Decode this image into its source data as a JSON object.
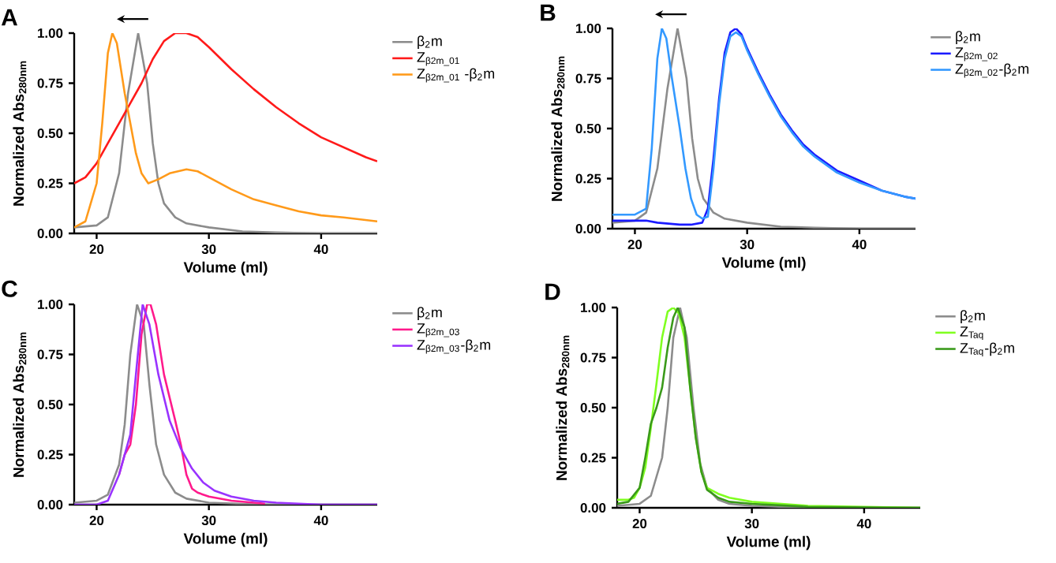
{
  "chart_data": [
    {
      "type": "line",
      "title": "A",
      "xlabel": "Volume (ml)",
      "ylabel": "Normalized Abs$_{280nm}$",
      "legend": "right",
      "marker": "none",
      "line_style": "solid",
      "xlim": [
        18,
        45
      ],
      "xticks": [
        20,
        30,
        40
      ],
      "ylim": [
        0,
        1
      ],
      "yticks": [
        {
          "value": 0,
          "label": "0.00"
        },
        {
          "value": 0.25,
          "label": "0.25"
        },
        {
          "value": 0.5,
          "label": "0.50"
        },
        {
          "value": 0.75,
          "label": "0.75"
        },
        {
          "value": 1,
          "label": "1.00"
        }
      ],
      "series": [
        {
          "name": "β$_{2}$m",
          "color": "#8c8c8c",
          "x": [
            18,
            20,
            21,
            22,
            22.8,
            23.7,
            24.5,
            25,
            25.5,
            26,
            27,
            28,
            30,
            33,
            36,
            40,
            45
          ],
          "values": [
            0.03,
            0.04,
            0.08,
            0.3,
            0.7,
            1.0,
            0.75,
            0.45,
            0.25,
            0.15,
            0.08,
            0.05,
            0.03,
            0.01,
            0.005,
            0,
            0
          ]
        },
        {
          "name": "Z$_{β2m_01}$",
          "color": "#ff1a1a",
          "x": [
            18,
            19,
            20,
            21,
            22,
            23,
            24,
            25,
            26,
            27,
            28,
            29,
            30,
            32,
            34,
            36,
            38,
            40,
            42,
            44,
            45
          ],
          "values": [
            0.25,
            0.28,
            0.35,
            0.45,
            0.55,
            0.65,
            0.75,
            0.87,
            0.96,
            1.0,
            1.0,
            0.98,
            0.93,
            0.82,
            0.72,
            0.63,
            0.55,
            0.48,
            0.43,
            0.38,
            0.36
          ]
        },
        {
          "name": "Z$_{β2m_01}$ -β$_{2}$m",
          "color": "#ff9a1a",
          "x": [
            18,
            19,
            20,
            20.5,
            21,
            21.4,
            21.8,
            22.5,
            23,
            23.5,
            24,
            24.6,
            25.5,
            26.5,
            28,
            29,
            30,
            32,
            34,
            36,
            38,
            40,
            42,
            45
          ],
          "values": [
            0.03,
            0.06,
            0.25,
            0.55,
            0.9,
            1.0,
            0.95,
            0.7,
            0.55,
            0.4,
            0.3,
            0.25,
            0.27,
            0.3,
            0.32,
            0.31,
            0.28,
            0.22,
            0.17,
            0.14,
            0.11,
            0.09,
            0.08,
            0.06
          ]
        }
      ]
    },
    {
      "type": "line",
      "title": "B",
      "xlabel": "Volume (ml)",
      "ylabel": "Normalized Abs$_{280nm}$",
      "legend": "right",
      "marker": "none",
      "line_style": "solid",
      "xlim": [
        18,
        45
      ],
      "xticks": [
        20,
        30,
        40
      ],
      "ylim": [
        0,
        1
      ],
      "yticks": [
        {
          "value": 0,
          "label": "0.00"
        },
        {
          "value": 0.25,
          "label": "0.25"
        },
        {
          "value": 0.5,
          "label": "0.50"
        },
        {
          "value": 0.75,
          "label": "0.75"
        },
        {
          "value": 1,
          "label": "1.00"
        }
      ],
      "series": [
        {
          "name": "β$_{2}$m",
          "color": "#8c8c8c",
          "x": [
            18,
            20,
            21,
            22,
            22.9,
            23.8,
            24.6,
            25.1,
            25.6,
            26.1,
            27,
            28,
            30,
            33,
            36,
            40,
            45
          ],
          "values": [
            0.03,
            0.04,
            0.08,
            0.3,
            0.7,
            1.0,
            0.75,
            0.45,
            0.25,
            0.15,
            0.08,
            0.05,
            0.03,
            0.01,
            0.005,
            0,
            0
          ]
        },
        {
          "name": "Z$_{β2m_02}$",
          "color": "#1a1aff",
          "x": [
            18,
            20,
            21,
            22,
            24,
            25,
            26,
            26.5,
            27,
            27.5,
            28,
            28.5,
            29,
            29.5,
            30,
            31,
            32,
            33,
            34,
            35,
            36,
            38,
            40,
            42,
            44,
            45
          ],
          "values": [
            0.04,
            0.04,
            0.04,
            0.03,
            0.02,
            0.02,
            0.03,
            0.1,
            0.35,
            0.65,
            0.88,
            0.98,
            1.0,
            0.97,
            0.9,
            0.78,
            0.67,
            0.57,
            0.49,
            0.42,
            0.37,
            0.29,
            0.24,
            0.19,
            0.16,
            0.15
          ]
        },
        {
          "name": "Z$_{β2m_02}$-β$_{2}$m",
          "color": "#3399ff",
          "x": [
            18,
            20,
            21,
            21.5,
            22,
            22.4,
            22.8,
            23.3,
            24,
            24.5,
            25,
            25.5,
            26,
            26.5,
            27,
            27.5,
            28,
            28.5,
            29,
            29.5,
            30,
            31,
            32,
            33,
            34,
            35,
            36,
            38,
            40,
            42,
            44,
            45
          ],
          "values": [
            0.07,
            0.07,
            0.1,
            0.4,
            0.85,
            1.0,
            0.95,
            0.75,
            0.5,
            0.3,
            0.15,
            0.07,
            0.05,
            0.06,
            0.3,
            0.62,
            0.85,
            0.96,
            0.98,
            0.96,
            0.89,
            0.77,
            0.66,
            0.56,
            0.48,
            0.41,
            0.36,
            0.28,
            0.23,
            0.19,
            0.16,
            0.15
          ]
        }
      ]
    },
    {
      "type": "line",
      "title": "C",
      "xlabel": "Volume (ml)",
      "ylabel": "Normalized Abs$_{280nm}$",
      "legend": "right",
      "marker": "none",
      "line_style": "solid",
      "xlim": [
        18,
        45
      ],
      "xticks": [
        20,
        30,
        40
      ],
      "ylim": [
        0,
        1
      ],
      "yticks": [
        {
          "value": 0,
          "label": "0.00"
        },
        {
          "value": 0.25,
          "label": "0.25"
        },
        {
          "value": 0.5,
          "label": "0.50"
        },
        {
          "value": 0.75,
          "label": "0.75"
        },
        {
          "value": 1,
          "label": "1.00"
        }
      ],
      "series": [
        {
          "name": "β$_{2}$m",
          "color": "#8c8c8c",
          "x": [
            18,
            20,
            21,
            22,
            22.5,
            23,
            23.6,
            24.2,
            24.7,
            25.3,
            26,
            27,
            28,
            30,
            35,
            45
          ],
          "values": [
            0.01,
            0.02,
            0.05,
            0.2,
            0.4,
            0.75,
            1.0,
            0.9,
            0.6,
            0.3,
            0.15,
            0.06,
            0.03,
            0.01,
            0,
            0
          ]
        },
        {
          "name": "Z$_{β2m_03}$",
          "color": "#ff1a8c",
          "x": [
            22,
            22.5,
            23,
            23.5,
            24,
            24.5,
            24.8,
            25.3,
            26,
            27,
            27.5,
            28,
            28.5,
            29,
            30,
            32,
            35
          ],
          "values": [
            0.15,
            0.25,
            0.3,
            0.5,
            0.85,
            1.0,
            1.0,
            0.9,
            0.65,
            0.42,
            0.3,
            0.15,
            0.08,
            0.06,
            0.04,
            0.02,
            0.005
          ]
        },
        {
          "name": "Z$_{β2m_03}$-β$_{2}$m",
          "color": "#9933ff",
          "x": [
            18,
            20,
            21,
            22,
            22.5,
            23,
            23.5,
            24.1,
            24.7,
            25.5,
            26.5,
            27.5,
            28.5,
            29.5,
            30.5,
            32,
            34,
            36,
            40,
            45
          ],
          "values": [
            0,
            0,
            0.02,
            0.15,
            0.25,
            0.35,
            0.65,
            1.0,
            0.9,
            0.65,
            0.42,
            0.28,
            0.18,
            0.11,
            0.07,
            0.04,
            0.02,
            0.01,
            0,
            0
          ]
        }
      ]
    },
    {
      "type": "line",
      "title": "D",
      "xlabel": "Volume (ml)",
      "ylabel": "Normalized Abs$_{280nm}$",
      "legend": "right",
      "marker": "none",
      "line_style": "solid",
      "xlim": [
        18,
        45
      ],
      "xticks": [
        20,
        30,
        40
      ],
      "ylim": [
        0,
        1
      ],
      "yticks": [
        {
          "value": 0,
          "label": "0.00"
        },
        {
          "value": 0.25,
          "label": "0.25"
        },
        {
          "value": 0.5,
          "label": "0.50"
        },
        {
          "value": 0.75,
          "label": "0.75"
        },
        {
          "value": 1,
          "label": "1.00"
        }
      ],
      "series": [
        {
          "name": "β$_{2}$m",
          "color": "#8c8c8c",
          "x": [
            18,
            20,
            21,
            22,
            22.5,
            23,
            23.6,
            24.2,
            24.8,
            25.4,
            26,
            27,
            28,
            30,
            35,
            45
          ],
          "values": [
            0.01,
            0.02,
            0.06,
            0.25,
            0.5,
            0.85,
            1.0,
            0.85,
            0.5,
            0.22,
            0.1,
            0.04,
            0.02,
            0.01,
            0,
            0
          ]
        },
        {
          "name": "Z$_{Taq}$",
          "color": "#80ff20",
          "x": [
            18,
            19,
            19.5,
            20,
            20.5,
            21,
            21.5,
            22,
            22.5,
            23,
            23.5,
            24,
            24.5,
            25,
            25.5,
            26,
            27,
            28,
            30,
            35,
            45
          ],
          "values": [
            0.04,
            0.04,
            0.05,
            0.1,
            0.2,
            0.4,
            0.62,
            0.85,
            0.98,
            1.0,
            0.97,
            0.85,
            0.6,
            0.35,
            0.18,
            0.1,
            0.07,
            0.05,
            0.03,
            0.01,
            0
          ]
        },
        {
          "name": "Z$_{Taq}$-β$_{2}$m",
          "color": "#3a9a1a",
          "x": [
            18,
            19,
            20,
            20.5,
            21,
            21.5,
            22,
            22.5,
            23,
            23.4,
            24,
            24.5,
            25,
            25.5,
            26,
            27,
            28,
            30,
            35,
            45
          ],
          "values": [
            0.02,
            0.03,
            0.1,
            0.25,
            0.42,
            0.5,
            0.6,
            0.8,
            0.95,
            1.0,
            0.9,
            0.6,
            0.35,
            0.18,
            0.09,
            0.05,
            0.03,
            0.02,
            0.005,
            0
          ]
        }
      ]
    }
  ]
}
